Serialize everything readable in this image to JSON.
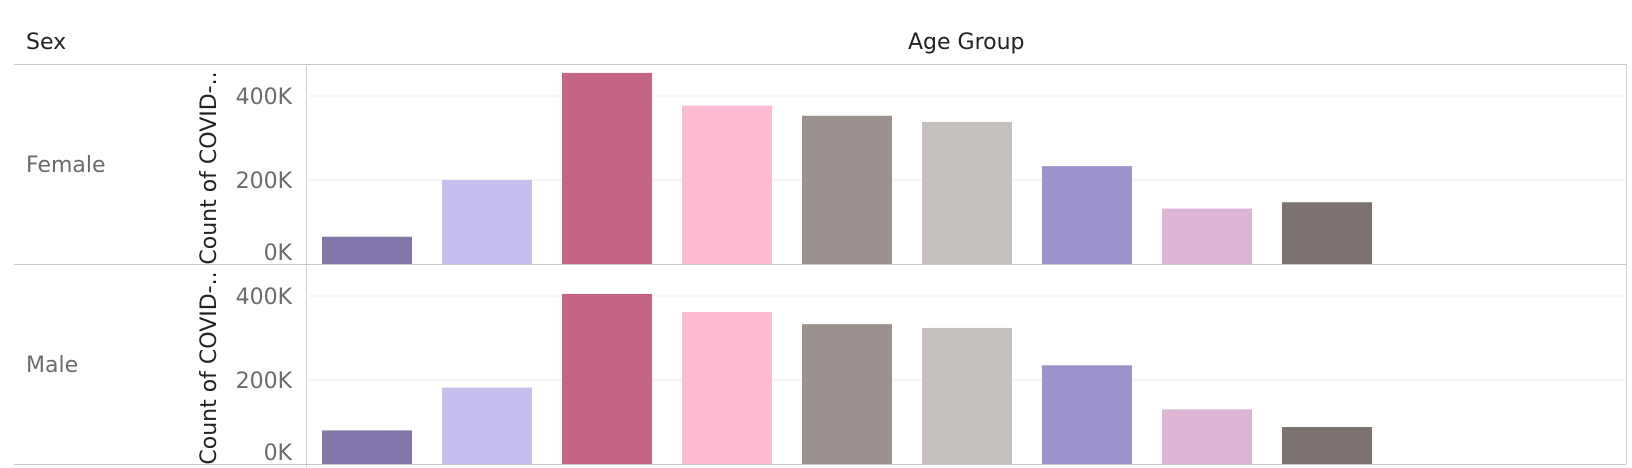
{
  "headers": {
    "row_field": "Sex",
    "column_field": "Age Group"
  },
  "chart_data": {
    "type": "bar",
    "column_header": "Age Group",
    "row_header": "Sex",
    "ylabel": "Count of COVID-..",
    "ylim": [
      0,
      440000
    ],
    "yticks": [
      0,
      200000,
      400000
    ],
    "ytick_labels": [
      "0K",
      "200K",
      "400K"
    ],
    "gridlines": true,
    "bar_colors": [
      "#8175aa",
      "#c6c0ee",
      "#c46586",
      "#fdbbd0",
      "#9b918e",
      "#c5bfbd",
      "#9b93cb",
      "#ddb5d5",
      "#7c7270"
    ],
    "panels": [
      {
        "name": "Female",
        "values": [
          65000,
          200000,
          455000,
          377000,
          353000,
          338000,
          233000,
          132000,
          147000
        ]
      },
      {
        "name": "Male",
        "values": [
          80000,
          182000,
          405000,
          362000,
          333000,
          324000,
          235000,
          130000,
          88000
        ]
      }
    ]
  }
}
